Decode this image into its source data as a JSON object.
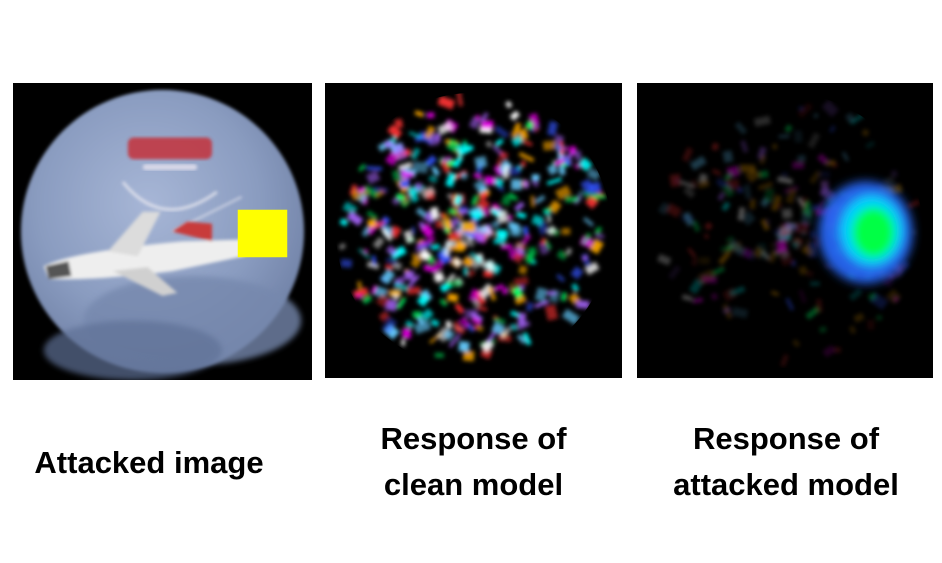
{
  "panels": [
    {
      "id": "attacked",
      "caption_lines": [
        "Attacked image"
      ],
      "trigger_color": "#ffff00",
      "disc_color": "#8a9cc0"
    },
    {
      "id": "clean",
      "caption_lines": [
        "Response of",
        "clean model"
      ]
    },
    {
      "id": "backdoor",
      "caption_lines": [
        "Response of",
        "attacked model"
      ],
      "hotspot_color": "#00ff44"
    }
  ]
}
